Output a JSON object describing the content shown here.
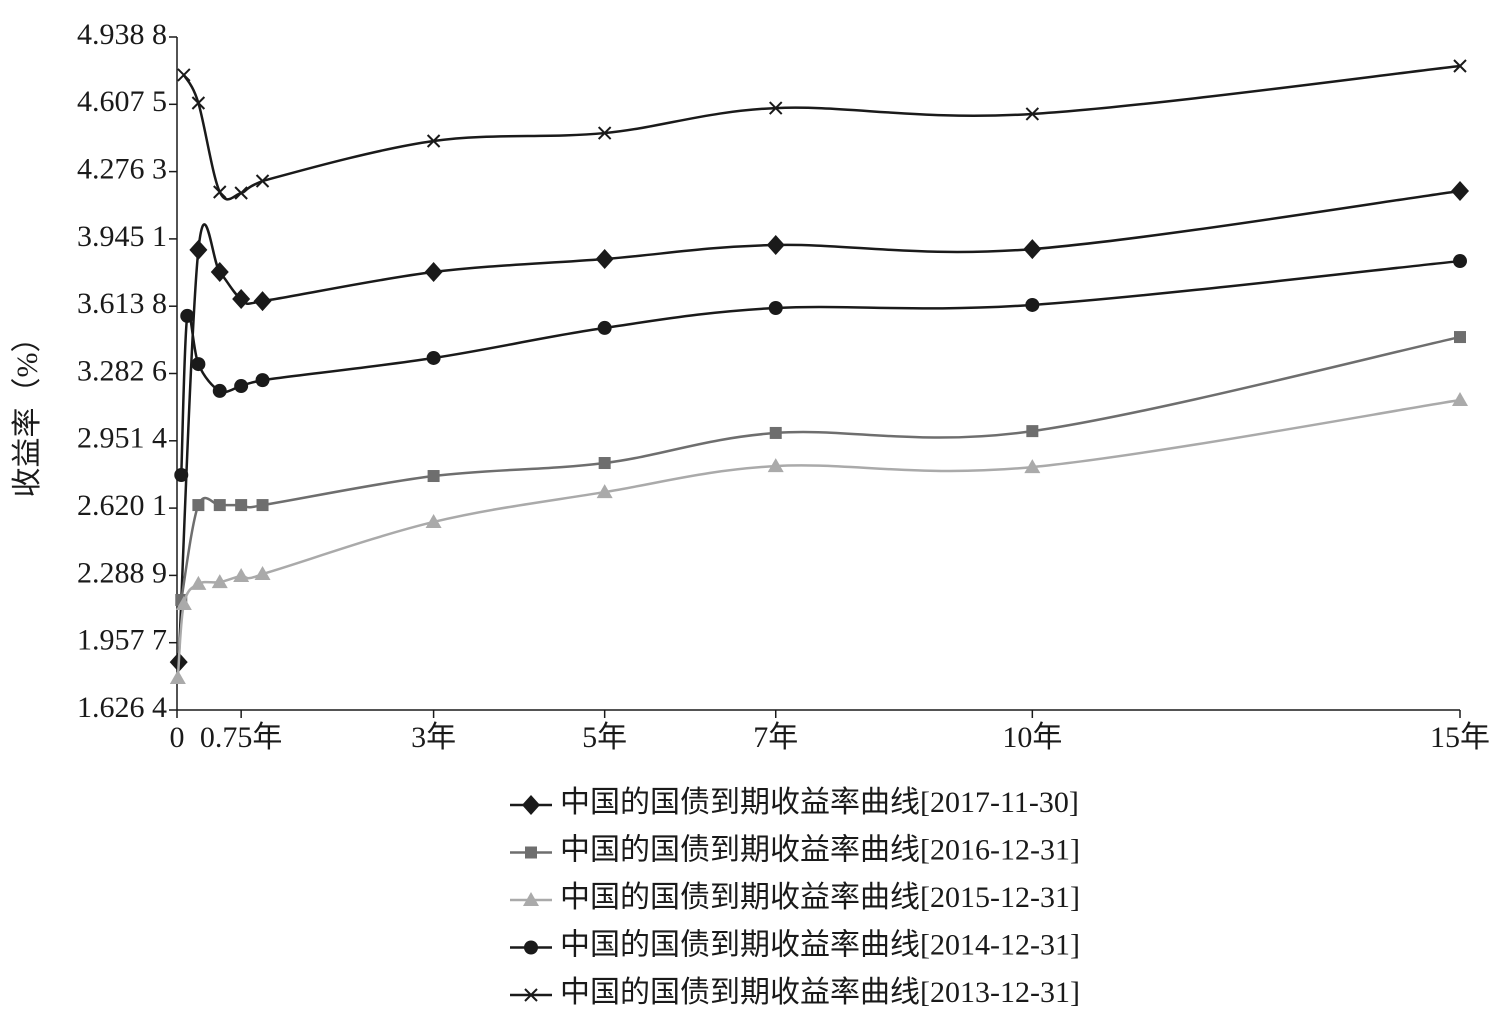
{
  "chart_data": {
    "type": "line",
    "y_label": "收益率（%）",
    "xlim": [
      0,
      15
    ],
    "xticks": [
      0,
      {
        "value": 0.75,
        "label": "0.75年"
      },
      {
        "value": 3,
        "label": "3年"
      },
      {
        "value": 5,
        "label": "5年"
      },
      {
        "value": 7,
        "label": "7年"
      },
      {
        "value": 10,
        "label": "10年"
      },
      {
        "value": 15,
        "label": "15年"
      }
    ],
    "ylim": [
      1.6264,
      4.9388
    ],
    "yticks": [
      {
        "value": 1.6264,
        "label": "1.626 4"
      },
      {
        "value": 1.9577,
        "label": "1.957 7"
      },
      {
        "value": 2.2889,
        "label": "2.288 9"
      },
      {
        "value": 2.6201,
        "label": "2.620 1"
      },
      {
        "value": 2.9514,
        "label": "2.951 4"
      },
      {
        "value": 3.2826,
        "label": "3.282 6"
      },
      {
        "value": 3.6138,
        "label": "3.613 8"
      },
      {
        "value": 3.9451,
        "label": "3.945 1"
      },
      {
        "value": 4.2763,
        "label": "4.276 3"
      },
      {
        "value": 4.6075,
        "label": "4.607 5"
      },
      {
        "value": 4.9388,
        "label": "4.938 8"
      }
    ],
    "series": [
      {
        "name": "中国的国债到期收益率曲线[2017-11-30]",
        "color": "#1a1a1a",
        "marker": "diamond",
        "x": [
          0.02,
          0.25,
          0.5,
          0.75,
          1,
          3,
          5,
          7,
          10,
          15
        ],
        "values": [
          1.862,
          3.891,
          3.782,
          3.649,
          3.639,
          3.782,
          3.846,
          3.915,
          3.895,
          4.181
        ]
      },
      {
        "name": "中国的国债到期收益率曲线[2016-12-31]",
        "color": "#6e6e6e",
        "marker": "square",
        "x": [
          0.05,
          0.25,
          0.5,
          0.75,
          1,
          3,
          5,
          7,
          10,
          15
        ],
        "values": [
          2.168,
          2.635,
          2.635,
          2.635,
          2.635,
          2.778,
          2.842,
          2.99,
          2.999,
          3.462
        ]
      },
      {
        "name": "中国的国债到期收益率曲线[2015-12-31]",
        "color": "#aaaaaa",
        "marker": "triangle",
        "x": [
          0.01,
          0.08,
          0.25,
          0.5,
          0.75,
          1,
          3,
          5,
          7,
          10,
          15
        ],
        "values": [
          1.784,
          2.148,
          2.247,
          2.256,
          2.286,
          2.296,
          2.552,
          2.699,
          2.827,
          2.822,
          3.152
        ]
      },
      {
        "name": "中国的国债到期收益率曲线[2014-12-31]",
        "color": "#1a1a1a",
        "marker": "circle",
        "x": [
          0.05,
          0.12,
          0.25,
          0.5,
          0.75,
          1,
          3,
          5,
          7,
          10,
          15
        ],
        "values": [
          2.783,
          3.566,
          3.329,
          3.197,
          3.221,
          3.25,
          3.359,
          3.507,
          3.605,
          3.62,
          3.836
        ]
      },
      {
        "name": "中国的国债到期收益率曲线[2013-12-31]",
        "color": "#1a1a1a",
        "marker": "cross",
        "x": [
          0.08,
          0.25,
          0.5,
          0.75,
          1,
          3,
          5,
          7,
          10,
          15
        ],
        "values": [
          4.752,
          4.614,
          4.176,
          4.171,
          4.23,
          4.427,
          4.466,
          4.589,
          4.56,
          4.796
        ]
      }
    ]
  }
}
